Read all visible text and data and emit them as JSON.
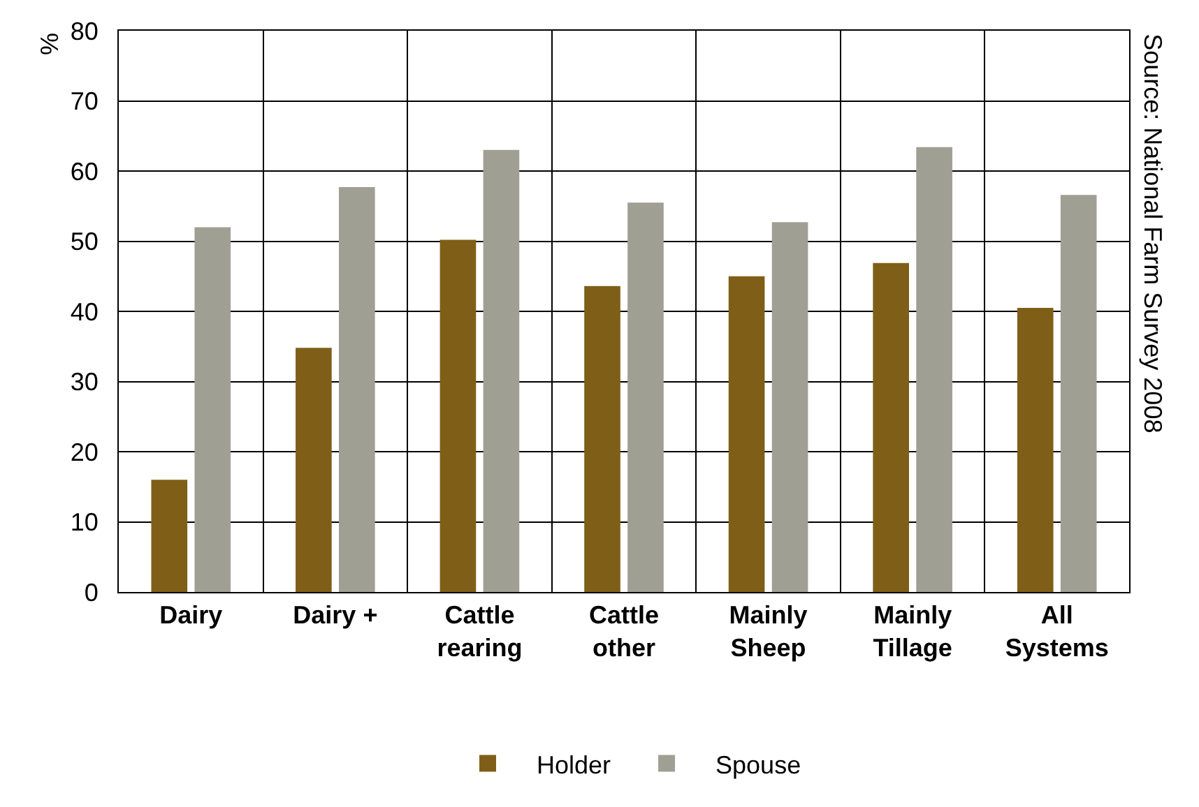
{
  "chart_data": {
    "type": "bar",
    "ylabel": "%",
    "categories": [
      "Dairy",
      "Dairy +",
      "Cattle\nrearing",
      "Cattle\nother",
      "Mainly\nSheep",
      "Mainly\nTillage",
      "All\nSystems"
    ],
    "series": [
      {
        "name": "Holder",
        "color": "#7f5f17",
        "values": [
          16,
          34.8,
          50.2,
          43.6,
          45,
          46.9,
          40.5
        ]
      },
      {
        "name": "Spouse",
        "color": "#a09f94",
        "values": [
          52,
          57.7,
          63,
          55.5,
          52.7,
          63.4,
          56.6
        ]
      }
    ],
    "ylim": [
      0,
      80
    ],
    "yticks": [
      0,
      10,
      20,
      30,
      40,
      50,
      60,
      70,
      80
    ],
    "grid": true,
    "legend": "bottom",
    "annotations": [
      "Source: National Farm Survey 2008"
    ]
  }
}
